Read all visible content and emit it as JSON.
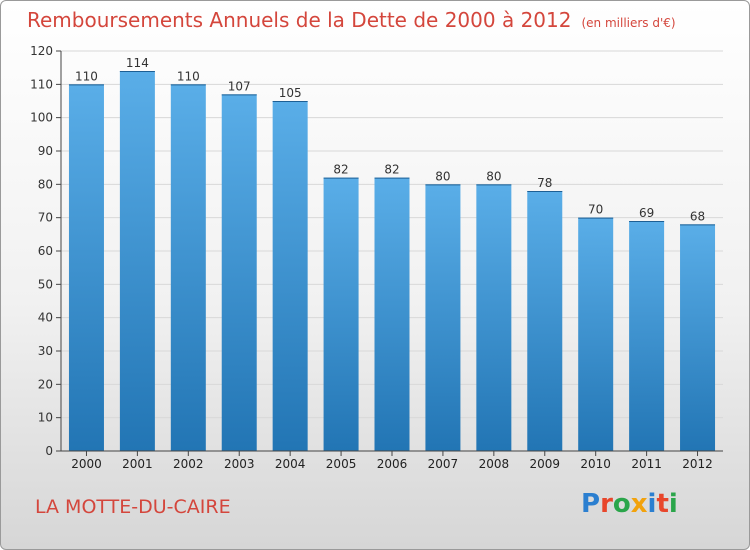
{
  "title": "Remboursements Annuels de la Dette de 2000 à 2012",
  "unit_note": "(en milliers d'€)",
  "commune": "LA MOTTE-DU-CAIRE",
  "brand": "Proxiti",
  "colors": {
    "title": "#d4463c",
    "bar_light": "#5aaee8",
    "bar_dark": "#2275b4",
    "axis": "#444444",
    "grid": "#d8d8d8"
  },
  "chart_data": {
    "type": "bar",
    "title": "Remboursements Annuels de la Dette de 2000 à 2012",
    "xlabel": "",
    "ylabel": "",
    "categories": [
      "2000",
      "2001",
      "2002",
      "2003",
      "2004",
      "2005",
      "2006",
      "2007",
      "2008",
      "2009",
      "2010",
      "2011",
      "2012"
    ],
    "values": [
      110,
      114,
      110,
      107,
      105,
      82,
      82,
      80,
      80,
      78,
      70,
      69,
      68
    ],
    "ylim": [
      0,
      120
    ],
    "yticks": [
      0,
      10,
      20,
      30,
      40,
      50,
      60,
      70,
      80,
      90,
      100,
      110,
      120
    ],
    "grid": true,
    "show_value_labels": true
  }
}
